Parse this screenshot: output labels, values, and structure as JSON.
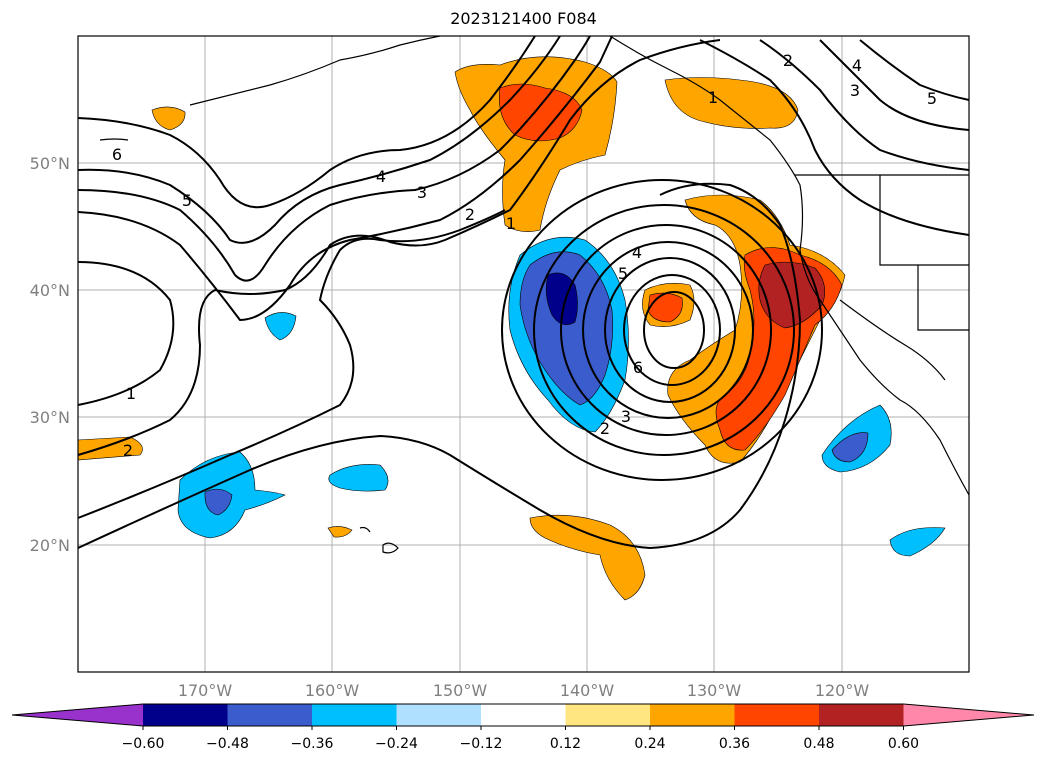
{
  "title": "2023121400 F084",
  "map": {
    "lat_labels": [
      "50°N",
      "40°N",
      "30°N",
      "20°N"
    ],
    "lon_labels": [
      "170°W",
      "160°W",
      "150°W",
      "140°W",
      "130°W",
      "120°W"
    ],
    "contour_labels": [
      "6",
      "5",
      "4",
      "3",
      "2",
      "1",
      "1",
      "2",
      "2",
      "1",
      "4",
      "5",
      "6",
      "3",
      "2",
      "2",
      "3",
      "4",
      "5"
    ]
  },
  "colorbar": {
    "tick_labels": [
      "−0.60",
      "−0.48",
      "−0.36",
      "−0.24",
      "−0.12",
      "0.12",
      "0.24",
      "0.36",
      "0.48",
      "0.60"
    ],
    "colors": {
      "under": "#9932cc",
      "bins": [
        "#00008b",
        "#3a5ccc",
        "#00bfff",
        "#b0e0ff",
        "#ffffff",
        "#ffe680",
        "#ffa500",
        "#ff4500",
        "#b22222"
      ],
      "over": "#ff88aa"
    }
  }
}
